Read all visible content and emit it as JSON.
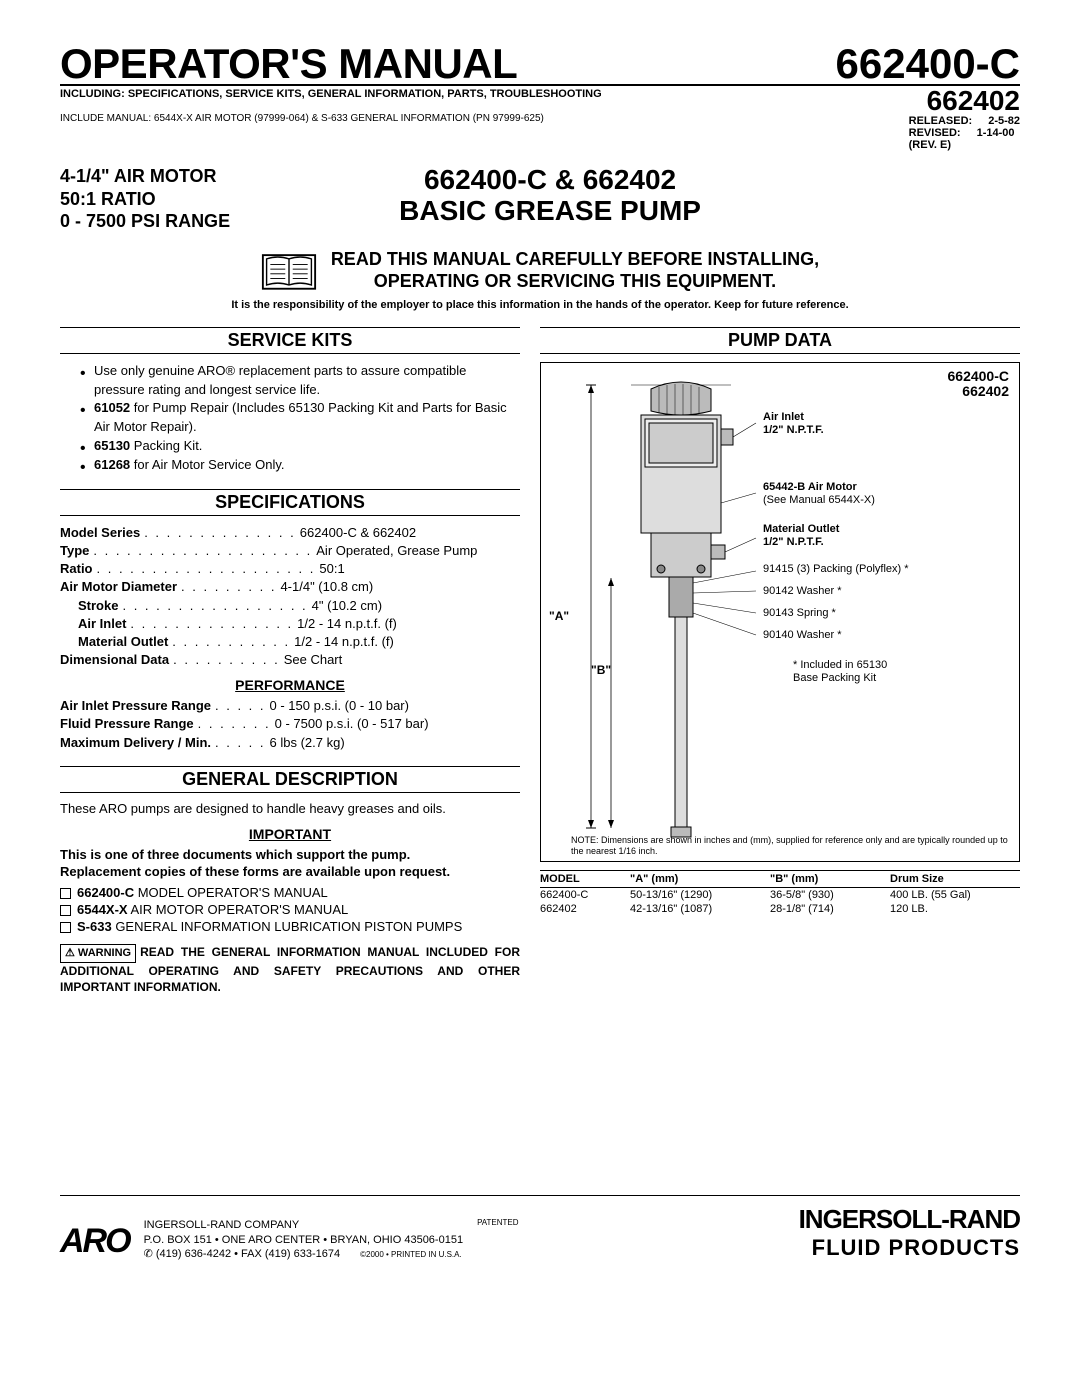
{
  "header": {
    "title": "OPERATOR'S MANUAL",
    "part_main": "662400-C",
    "part_sub": "662402",
    "subtitle": "INCLUDING: SPECIFICATIONS, SERVICE KITS, GENERAL INFORMATION, PARTS, TROUBLESHOOTING",
    "include_manual": "INCLUDE MANUAL: 6544X-X AIR MOTOR (97999-064) & S-633 GENERAL INFORMATION (PN 97999-625)",
    "released_label": "RELEASED:",
    "released_date": "2-5-82",
    "revised_label": "REVISED:",
    "revised_date": "1-14-00",
    "rev": "(REV. E)"
  },
  "specs_header": {
    "line1": "4-1/4\" AIR MOTOR",
    "line2": "50:1 RATIO",
    "line3": "0 - 7500 PSI RANGE"
  },
  "center": {
    "line1": "662400-C & 662402",
    "line2": "BASIC GREASE PUMP"
  },
  "warning_banner": {
    "line1": "READ THIS MANUAL CAREFULLY BEFORE INSTALLING,",
    "line2": "OPERATING OR SERVICING THIS EQUIPMENT.",
    "responsibility": "It is the responsibility of the employer to place this information in the hands of the operator. Keep for future reference."
  },
  "service_kits": {
    "heading": "SERVICE KITS",
    "items": [
      "Use only genuine ARO® replacement parts to assure compatible pressure rating and longest service life.",
      "61052 for Pump Repair (Includes 65130 Packing Kit and Parts for Basic Air Motor Repair).",
      "65130 Packing Kit.",
      "61268 for Air Motor Service Only."
    ],
    "bold_prefixes": [
      "",
      "61052",
      "65130",
      "61268"
    ]
  },
  "specifications": {
    "heading": "SPECIFICATIONS",
    "rows": [
      {
        "label": "Model Series",
        "dots": ". . . . . . . . . . . . . .",
        "value": "662400-C & 662402"
      },
      {
        "label": "Type",
        "dots": " . . . . . . . . . . . . . . . . . . . .",
        "value": "Air Operated, Grease Pump"
      },
      {
        "label": "Ratio",
        "dots": ". . . . . . . . . . . . . . . . . . . .",
        "value": "50:1"
      },
      {
        "label": "Air Motor Diameter",
        "dots": " . . . . . . . . .",
        "value": "4-1/4\" (10.8 cm)"
      },
      {
        "label": "   Stroke",
        "dots": ". . . . . . . . . . . . . . . . .",
        "value": "4\" (10.2 cm)"
      },
      {
        "label": "   Air Inlet",
        "dots": " . . . . . . . . . . . . . . .",
        "value": "1/2 - 14 n.p.t.f. (f)"
      },
      {
        "label": "   Material Outlet",
        "dots": " . . . . . . . . . . .",
        "value": "1/2 - 14 n.p.t.f. (f)"
      },
      {
        "label": "Dimensional Data",
        "dots": " . . . . . . . . . .",
        "value": "See Chart"
      }
    ],
    "perf_heading": "PERFORMANCE",
    "perf_rows": [
      {
        "label": "Air Inlet Pressure Range",
        "dots": " . . . . .",
        "value": "0 - 150 p.s.i. (0 - 10 bar)"
      },
      {
        "label": "Fluid Pressure Range",
        "dots": " . . . . . . .",
        "value": "0 - 7500 p.s.i. (0 - 517 bar)"
      },
      {
        "label": "Maximum Delivery / Min.",
        "dots": ". . . . .",
        "value": "6 lbs (2.7 kg)"
      }
    ]
  },
  "general": {
    "heading": "GENERAL DESCRIPTION",
    "text": "These ARO pumps are designed to handle heavy greases and oils.",
    "important_heading": "IMPORTANT",
    "important_text1": "This is one of three documents which support the pump.",
    "important_text2": "Replacement copies of these forms are available upon request.",
    "docs": [
      {
        "bold": "662400-C",
        "rest": " MODEL OPERATOR'S MANUAL"
      },
      {
        "bold": "6544X-X",
        "rest": " AIR MOTOR OPERATOR'S MANUAL"
      },
      {
        "bold": "S-633",
        "rest": " GENERAL INFORMATION LUBRICATION PISTON PUMPS"
      }
    ],
    "warning_label": "⚠ WARNING",
    "warning_text": "READ THE GENERAL INFORMATION MANUAL INCLUDED FOR ADDITIONAL OPERATING AND SAFETY PRECAUTIONS AND OTHER IMPORTANT INFORMATION."
  },
  "pump_data": {
    "heading": "PUMP DATA",
    "title1": "662400-C",
    "title2": "662402",
    "callouts": {
      "air_inlet": "Air Inlet",
      "air_inlet2": "1/2\" N.P.T.F.",
      "air_motor": "65442-B Air Motor",
      "air_motor2": "(See Manual 6544X-X)",
      "mat_outlet": "Material Outlet",
      "mat_outlet2": "1/2\" N.P.T.F.",
      "packing": "91415 (3) Packing (Polyflex) *",
      "washer1": "90142 Washer *",
      "spring": "90143 Spring *",
      "washer2": "90140 Washer *",
      "kit_note1": "* Included in 65130",
      "kit_note2": "   Base Packing Kit"
    },
    "dim_a": "\"A\"",
    "dim_b": "\"B\"",
    "note": "NOTE: Dimensions are shown in inches and (mm), supplied for reference only and are typically rounded up to the nearest 1/16 inch.",
    "table": {
      "headers": [
        "MODEL",
        "\"A\" (mm)",
        "\"B\" (mm)",
        "Drum Size"
      ],
      "rows": [
        [
          "662400-C",
          "50-13/16\" (1290)",
          "36-5/8\" (930)",
          "400 LB. (55 Gal)"
        ],
        [
          "662402",
          "42-13/16\" (1087)",
          "28-1/8\" (714)",
          "120 LB."
        ]
      ]
    }
  },
  "footer": {
    "aro": "ARO",
    "company": "INGERSOLL-RAND COMPANY",
    "addr": "P.O. BOX 151 • ONE ARO CENTER • BRYAN, OHIO 43506-0151",
    "phone": "✆ (419) 636-4242 • FAX (419) 633-1674",
    "patented": "PATENTED",
    "copyright": "©2000 • PRINTED IN U.S.A.",
    "ir": "INGERSOLL-RAND",
    "ir_sub": "FLUID PRODUCTS"
  }
}
